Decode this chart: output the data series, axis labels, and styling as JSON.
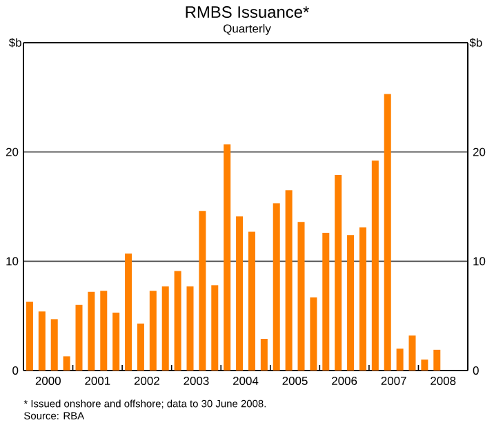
{
  "chart_data": {
    "type": "bar",
    "title": "RMBS Issuance*",
    "subtitle": "Quarterly",
    "ylabel": "$b",
    "y2label": "$b",
    "x": [
      2000.125,
      2000.375,
      2000.625,
      2000.875,
      2001.125,
      2001.375,
      2001.625,
      2001.875,
      2002.125,
      2002.375,
      2002.625,
      2002.875,
      2003.125,
      2003.375,
      2003.625,
      2003.875,
      2004.125,
      2004.375,
      2004.625,
      2004.875,
      2005.125,
      2005.375,
      2005.625,
      2005.875,
      2006.125,
      2006.375,
      2006.625,
      2006.875,
      2007.125,
      2007.375,
      2007.625,
      2007.875,
      2008.125,
      2008.375
    ],
    "values": [
      6.3,
      5.4,
      4.7,
      1.3,
      6.0,
      7.2,
      7.3,
      5.3,
      10.7,
      4.3,
      7.3,
      7.7,
      9.1,
      7.7,
      14.6,
      7.8,
      20.7,
      14.1,
      12.7,
      2.9,
      15.3,
      16.5,
      13.6,
      6.7,
      12.6,
      17.9,
      12.4,
      13.1,
      19.2,
      25.3,
      2.0,
      3.2,
      1.0,
      1.9
    ],
    "color": "#ff8000",
    "xlim": [
      2000,
      2009
    ],
    "xticks": [
      {
        "value": 2000.5,
        "label": "2000"
      },
      {
        "value": 2001,
        "label": null
      },
      {
        "value": 2001.5,
        "label": "2001"
      },
      {
        "value": 2002,
        "label": null
      },
      {
        "value": 2002.5,
        "label": "2002"
      },
      {
        "value": 2003,
        "label": null
      },
      {
        "value": 2003.5,
        "label": "2003"
      },
      {
        "value": 2004,
        "label": null
      },
      {
        "value": 2004.5,
        "label": "2004"
      },
      {
        "value": 2005,
        "label": null
      },
      {
        "value": 2005.5,
        "label": "2005"
      },
      {
        "value": 2006,
        "label": null
      },
      {
        "value": 2006.5,
        "label": "2006"
      },
      {
        "value": 2007,
        "label": null
      },
      {
        "value": 2007.5,
        "label": "2007"
      },
      {
        "value": 2008,
        "label": null
      },
      {
        "value": 2008.5,
        "label": "2008"
      }
    ],
    "ylim": [
      0,
      30
    ],
    "yticks": [
      0,
      10,
      20
    ],
    "y2lim": [
      0,
      30
    ],
    "y2ticks": [
      0,
      10,
      20
    ],
    "grid": "y",
    "annotations": [
      "*   Issued onshore and offshore; data to 30 June 2008.",
      "Source: RBA"
    ]
  }
}
